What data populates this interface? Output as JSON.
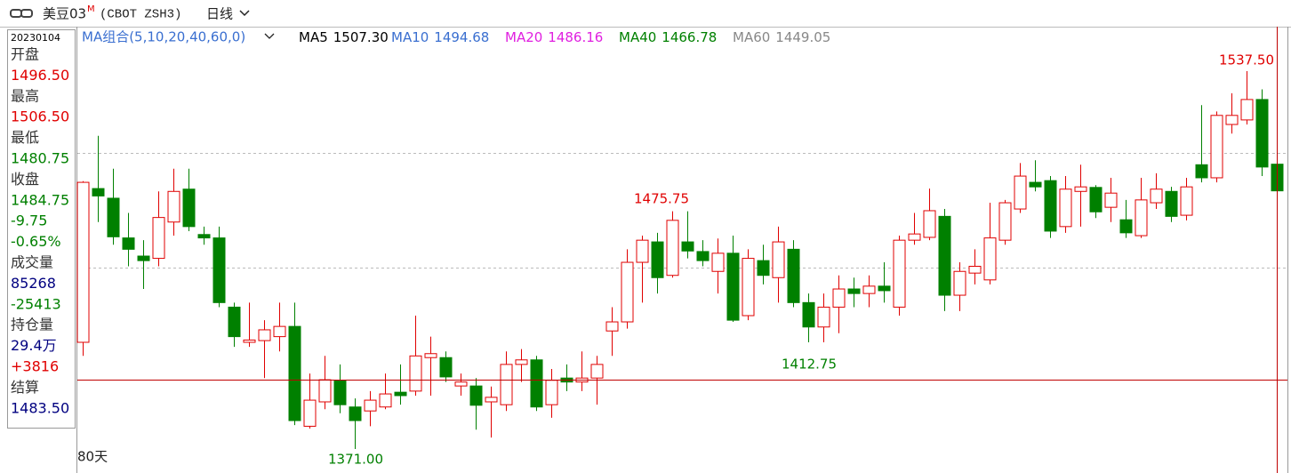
{
  "header": {
    "name": "美豆03",
    "mark": "M",
    "code": "(CBOT ZSH3)",
    "period": "日线"
  },
  "info_panel": [
    {
      "text": "20230104",
      "color": "#000000"
    },
    {
      "text": "开盘",
      "color": "#333333"
    },
    {
      "text": "1496.50",
      "color": "#e00000"
    },
    {
      "text": "最高",
      "color": "#333333"
    },
    {
      "text": "1506.50",
      "color": "#e00000"
    },
    {
      "text": "最低",
      "color": "#333333"
    },
    {
      "text": "1480.75",
      "color": "#008000"
    },
    {
      "text": "收盘",
      "color": "#333333"
    },
    {
      "text": "1484.75",
      "color": "#008000"
    },
    {
      "text": "-9.75",
      "color": "#008000"
    },
    {
      "text": "-0.65%",
      "color": "#008000"
    },
    {
      "text": "成交量",
      "color": "#333333"
    },
    {
      "text": "85268",
      "color": "#000080"
    },
    {
      "text": "-25413",
      "color": "#008000"
    },
    {
      "text": "持仓量",
      "color": "#333333"
    },
    {
      "text": "29.4万",
      "color": "#000080"
    },
    {
      "text": "+3816",
      "color": "#e00000"
    },
    {
      "text": "结算",
      "color": "#333333"
    },
    {
      "text": "1483.50",
      "color": "#000080"
    }
  ],
  "ma_legend": {
    "title": "MA组合(5,10,20,40,60,0)",
    "items": [
      {
        "name": "MA5",
        "value": "1507.30",
        "color": "#000000"
      },
      {
        "name": "MA10",
        "value": "1494.68",
        "color": "#3a6fd0"
      },
      {
        "name": "MA20",
        "value": "1486.16",
        "color": "#e020e0"
      },
      {
        "name": "MA40",
        "value": "1466.78",
        "color": "#008000"
      },
      {
        "name": "MA60",
        "value": "1449.05",
        "color": "#888888"
      }
    ]
  },
  "annotations": [
    "1537.50",
    "1475.75",
    "1412.75",
    "1371.00"
  ],
  "duration_label": "80天",
  "chart_data": {
    "type": "candlestick",
    "up_color": "#e00000",
    "down_color": "#008000",
    "ylim": [
      1360.4,
      1557.1
    ],
    "open": [
      1418,
      1485.75,
      1481.5,
      1464,
      1456,
      1455,
      1471,
      1485.5,
      1465.5,
      1464,
      1433.5,
      1418,
      1418.75,
      1420.5,
      1425,
      1381,
      1391.75,
      1401.25,
      1389.5,
      1387.75,
      1389.5,
      1396,
      1396.5,
      1411.25,
      1411.25,
      1398.75,
      1398.75,
      1391.75,
      1390.5,
      1408.25,
      1410.25,
      1390.5,
      1402.25,
      1400.5,
      1402.25,
      1423,
      1427,
      1453.25,
      1462.25,
      1447.5,
      1462.25,
      1458,
      1449.25,
      1457.25,
      1429.75,
      1454,
      1446.5,
      1459,
      1435.5,
      1424.75,
      1433.5,
      1441.5,
      1439.5,
      1442.75,
      1433.5,
      1463,
      1464.25,
      1473.5,
      1438.75,
      1448.5,
      1445.5,
      1463,
      1476.75,
      1488.5,
      1489.25,
      1469,
      1484.5,
      1486.25,
      1477.5,
      1472,
      1465,
      1479.5,
      1484.5,
      1474,
      1496.25,
      1490.5,
      1514,
      1516,
      1525,
      1496.5
    ],
    "high": [
      1489,
      1509,
      1494.5,
      1475,
      1463,
      1484.5,
      1494.5,
      1494.5,
      1469,
      1469,
      1435.5,
      1435.5,
      1427.75,
      1435.5,
      1435.5,
      1404.25,
      1412,
      1408.25,
      1393.25,
      1396.5,
      1404.25,
      1408.25,
      1429.75,
      1420.5,
      1414,
      1404.25,
      1402.25,
      1398.5,
      1414,
      1415,
      1412,
      1406.25,
      1408.25,
      1414,
      1412,
      1433.5,
      1459,
      1465,
      1466.25,
      1475.75,
      1475.75,
      1463,
      1463.75,
      1465,
      1459,
      1461,
      1469,
      1463,
      1439.5,
      1439.5,
      1447.5,
      1446.5,
      1447.5,
      1453.25,
      1465,
      1475,
      1485.75,
      1476.75,
      1453.25,
      1459,
      1479.5,
      1480.75,
      1497,
      1498.25,
      1491.25,
      1491.25,
      1496.25,
      1487.25,
      1490.5,
      1480.75,
      1490.5,
      1492.5,
      1486.5,
      1490.5,
      1522.5,
      1519.75,
      1527.75,
      1537.5,
      1529.5,
      1506.5
    ],
    "low": [
      1412,
      1471,
      1461,
      1451.5,
      1441.5,
      1451.5,
      1465,
      1467,
      1461,
      1433.5,
      1416,
      1416,
      1402.25,
      1414,
      1381.5,
      1380,
      1388.5,
      1386.75,
      1371,
      1381,
      1388.5,
      1390.5,
      1394.5,
      1394.5,
      1400.5,
      1394.5,
      1379.5,
      1376,
      1387.75,
      1400.5,
      1387.75,
      1384.75,
      1396.5,
      1396.5,
      1390.5,
      1412,
      1424,
      1435.5,
      1439.5,
      1446.5,
      1455,
      1451.5,
      1439.5,
      1427,
      1427.75,
      1443.5,
      1435.5,
      1433.5,
      1418,
      1418,
      1422,
      1433.5,
      1433.5,
      1435.5,
      1429.75,
      1461,
      1463,
      1431.75,
      1431.75,
      1443.5,
      1443.5,
      1461,
      1475,
      1484.5,
      1464,
      1466.25,
      1469,
      1472.75,
      1471,
      1464,
      1464,
      1476.75,
      1471,
      1471.75,
      1488.5,
      1488.5,
      1510,
      1514,
      1491.25,
      1480.75
    ],
    "close": [
      1488.5,
      1482.5,
      1464.5,
      1459,
      1454,
      1473,
      1484.5,
      1469,
      1464,
      1435.5,
      1420.5,
      1419,
      1423.5,
      1425,
      1383.5,
      1392.5,
      1401.5,
      1390.5,
      1383.5,
      1392.5,
      1395.25,
      1394.5,
      1412,
      1413,
      1402.75,
      1400.5,
      1390.25,
      1393.75,
      1408.25,
      1410.25,
      1389.5,
      1401.25,
      1400.5,
      1402.25,
      1408.25,
      1427,
      1453.25,
      1463,
      1446.5,
      1471.75,
      1458.25,
      1454,
      1457.25,
      1427.75,
      1455,
      1447.5,
      1462.25,
      1435.5,
      1424.75,
      1433.5,
      1441.5,
      1439.5,
      1442.75,
      1440.75,
      1463,
      1465.75,
      1476,
      1438.75,
      1449.25,
      1451.5,
      1464,
      1479.5,
      1491.25,
      1486.5,
      1467,
      1485.5,
      1486.5,
      1475.5,
      1483.75,
      1466.25,
      1480.75,
      1485.5,
      1473.5,
      1486.5,
      1490.5,
      1518,
      1518,
      1525,
      1495.25,
      1484.75
    ]
  }
}
